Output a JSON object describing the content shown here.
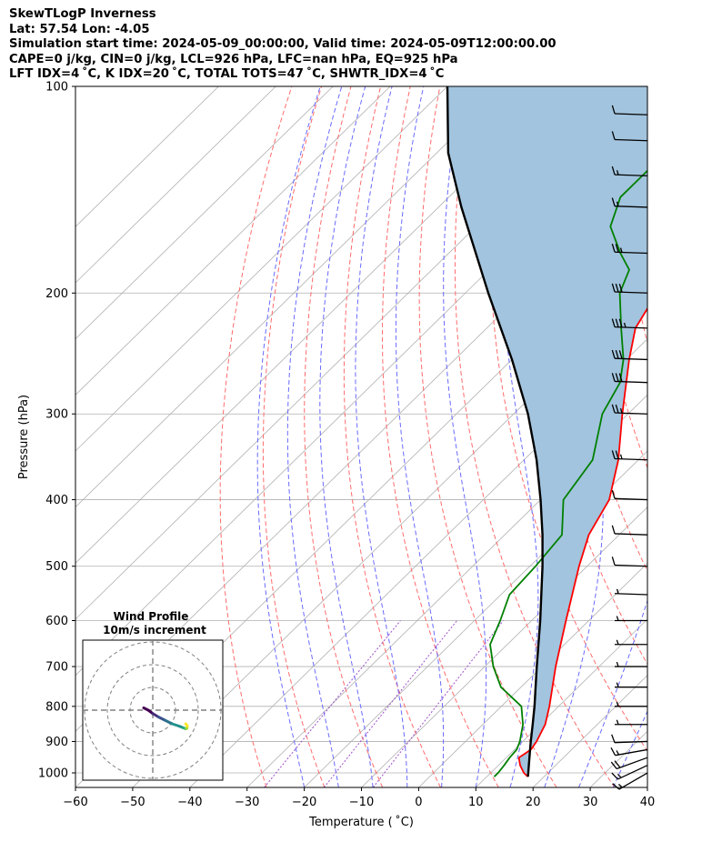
{
  "header": {
    "lines": [
      "SkewTLogP Inverness",
      "Lat: 57.54   Lon: -4.05",
      "Simulation start time: 2024-05-09_00:00:00, Valid time: 2024-05-09T12:00:00.00",
      "CAPE=0 j/kg, CIN=0 j/kg, LCL=926 hPa, LFC=nan hPa, EQ=925 hPa",
      "LFT IDX=4 ˚C, K IDX=20 ˚C, TOTAL TOTS=47 ˚C, SHWTR_IDX=4 ˚C"
    ]
  },
  "chart_data": {
    "type": "skewt",
    "xlabel": "Temperature ( ˚C)",
    "ylabel": "Pressure (hPa)",
    "xlim": [
      -60,
      40
    ],
    "ylim": [
      1050,
      100
    ],
    "x_ticks": [
      "−60",
      "−50",
      "−40",
      "−30",
      "−20",
      "−10",
      "0",
      "10",
      "20",
      "30",
      "40"
    ],
    "y_ticks": [
      1000,
      900,
      800,
      700,
      600,
      500,
      400,
      300,
      200,
      100
    ],
    "grid": true,
    "log_pressure": true,
    "series": [
      {
        "role": "temperature",
        "color": "#ff0000",
        "points": [
          [
            1013,
            17.2
          ],
          [
            1000,
            15.8
          ],
          [
            975,
            13.8
          ],
          [
            950,
            12.2
          ],
          [
            925,
            12.9
          ],
          [
            900,
            12.4
          ],
          [
            850,
            10.9
          ],
          [
            800,
            8.4
          ],
          [
            700,
            2.4
          ],
          [
            600,
            -4.0
          ],
          [
            500,
            -11.4
          ],
          [
            450,
            -15.3
          ],
          [
            400,
            -18.0
          ],
          [
            350,
            -23.5
          ],
          [
            300,
            -31.0
          ],
          [
            250,
            -39.5
          ],
          [
            225,
            -44.0
          ],
          [
            200,
            -46.5
          ],
          [
            175,
            -44.5
          ],
          [
            150,
            -45.5
          ],
          [
            140,
            -49.0
          ],
          [
            125,
            -53.0
          ],
          [
            100,
            -59.0
          ]
        ]
      },
      {
        "role": "dewpoint",
        "color": "#008000",
        "points": [
          [
            1013,
            11.3
          ],
          [
            1000,
            11.3
          ],
          [
            975,
            11.0
          ],
          [
            950,
            10.6
          ],
          [
            925,
            10.4
          ],
          [
            900,
            9.5
          ],
          [
            850,
            7.0
          ],
          [
            800,
            3.5
          ],
          [
            750,
            -3.5
          ],
          [
            700,
            -8.5
          ],
          [
            650,
            -13.0
          ],
          [
            600,
            -15.5
          ],
          [
            550,
            -18.5
          ],
          [
            500,
            -19.0
          ],
          [
            450,
            -20.0
          ],
          [
            400,
            -26.0
          ],
          [
            350,
            -28.0
          ],
          [
            300,
            -34.5
          ],
          [
            270,
            -37.0
          ],
          [
            250,
            -40.5
          ],
          [
            225,
            -46.5
          ],
          [
            200,
            -53.0
          ],
          [
            185,
            -55.5
          ],
          [
            175,
            -60.0
          ],
          [
            160,
            -66.5
          ],
          [
            145,
            -70.0
          ],
          [
            125,
            -70.0
          ],
          [
            100,
            -70.0
          ]
        ]
      },
      {
        "role": "parcel",
        "color": "#000000",
        "points": [
          [
            1013,
            17.2
          ],
          [
            926,
            12.8
          ],
          [
            900,
            11.4
          ],
          [
            850,
            8.7
          ],
          [
            800,
            5.8
          ],
          [
            700,
            -0.9
          ],
          [
            600,
            -8.5
          ],
          [
            500,
            -17.8
          ],
          [
            450,
            -23.4
          ],
          [
            400,
            -30.0
          ],
          [
            350,
            -37.8
          ],
          [
            300,
            -47.5
          ],
          [
            250,
            -60.0
          ],
          [
            200,
            -76.0
          ],
          [
            150,
            -96.0
          ],
          [
            125,
            -108.0
          ],
          [
            100,
            -120.0
          ]
        ]
      }
    ],
    "barbs": [
      {
        "pressure": 1000,
        "speed_kt": 15,
        "direction_deg": 240
      },
      {
        "pressure": 975,
        "speed_kt": 15,
        "direction_deg": 245
      },
      {
        "pressure": 950,
        "speed_kt": 20,
        "direction_deg": 250
      },
      {
        "pressure": 925,
        "speed_kt": 15,
        "direction_deg": 260
      },
      {
        "pressure": 900,
        "speed_kt": 10,
        "direction_deg": 268
      },
      {
        "pressure": 850,
        "speed_kt": 5,
        "direction_deg": 270
      },
      {
        "pressure": 800,
        "speed_kt": 5,
        "direction_deg": 270
      },
      {
        "pressure": 750,
        "speed_kt": 5,
        "direction_deg": 270
      },
      {
        "pressure": 700,
        "speed_kt": 5,
        "direction_deg": 270
      },
      {
        "pressure": 650,
        "speed_kt": 5,
        "direction_deg": 270
      },
      {
        "pressure": 600,
        "speed_kt": 5,
        "direction_deg": 270
      },
      {
        "pressure": 550,
        "speed_kt": 5,
        "direction_deg": 272
      },
      {
        "pressure": 500,
        "speed_kt": 10,
        "direction_deg": 272
      },
      {
        "pressure": 450,
        "speed_kt": 10,
        "direction_deg": 272
      },
      {
        "pressure": 400,
        "speed_kt": 10,
        "direction_deg": 272
      },
      {
        "pressure": 350,
        "speed_kt": 25,
        "direction_deg": 272
      },
      {
        "pressure": 300,
        "speed_kt": 25,
        "direction_deg": 272
      },
      {
        "pressure": 270,
        "speed_kt": 30,
        "direction_deg": 272
      },
      {
        "pressure": 250,
        "speed_kt": 30,
        "direction_deg": 272
      },
      {
        "pressure": 225,
        "speed_kt": 35,
        "direction_deg": 272
      },
      {
        "pressure": 200,
        "speed_kt": 30,
        "direction_deg": 272
      },
      {
        "pressure": 175,
        "speed_kt": 25,
        "direction_deg": 272
      },
      {
        "pressure": 150,
        "speed_kt": 15,
        "direction_deg": 272
      },
      {
        "pressure": 135,
        "speed_kt": 15,
        "direction_deg": 272
      },
      {
        "pressure": 120,
        "speed_kt": 10,
        "direction_deg": 272
      },
      {
        "pressure": 110,
        "speed_kt": 10,
        "direction_deg": 272
      }
    ],
    "inset": {
      "title_lines": [
        "Wind Profile",
        "10m/s increment"
      ],
      "ring_count": 3,
      "hodograph_u": [
        -4.0,
        -2.0,
        0.0,
        2.5,
        5.5,
        8.5,
        11.5,
        13.5,
        14.5,
        15.0,
        15.2,
        14.5
      ],
      "hodograph_v": [
        1.0,
        0.0,
        -1.5,
        -3.0,
        -4.5,
        -6.0,
        -7.0,
        -7.8,
        -8.2,
        -8.0,
        -7.0,
        -6.0
      ]
    }
  },
  "colors": {
    "temperature": "#ff0000",
    "dewpoint": "#008000",
    "parcel": "#000000",
    "cape_fill": "#a2c4de",
    "isotherm": "#b0b0b0",
    "dry_adiabat": "#ff6b6b",
    "moist_adiabat": "#6a6aff",
    "mixing_ratio": "#9b4fc9"
  }
}
